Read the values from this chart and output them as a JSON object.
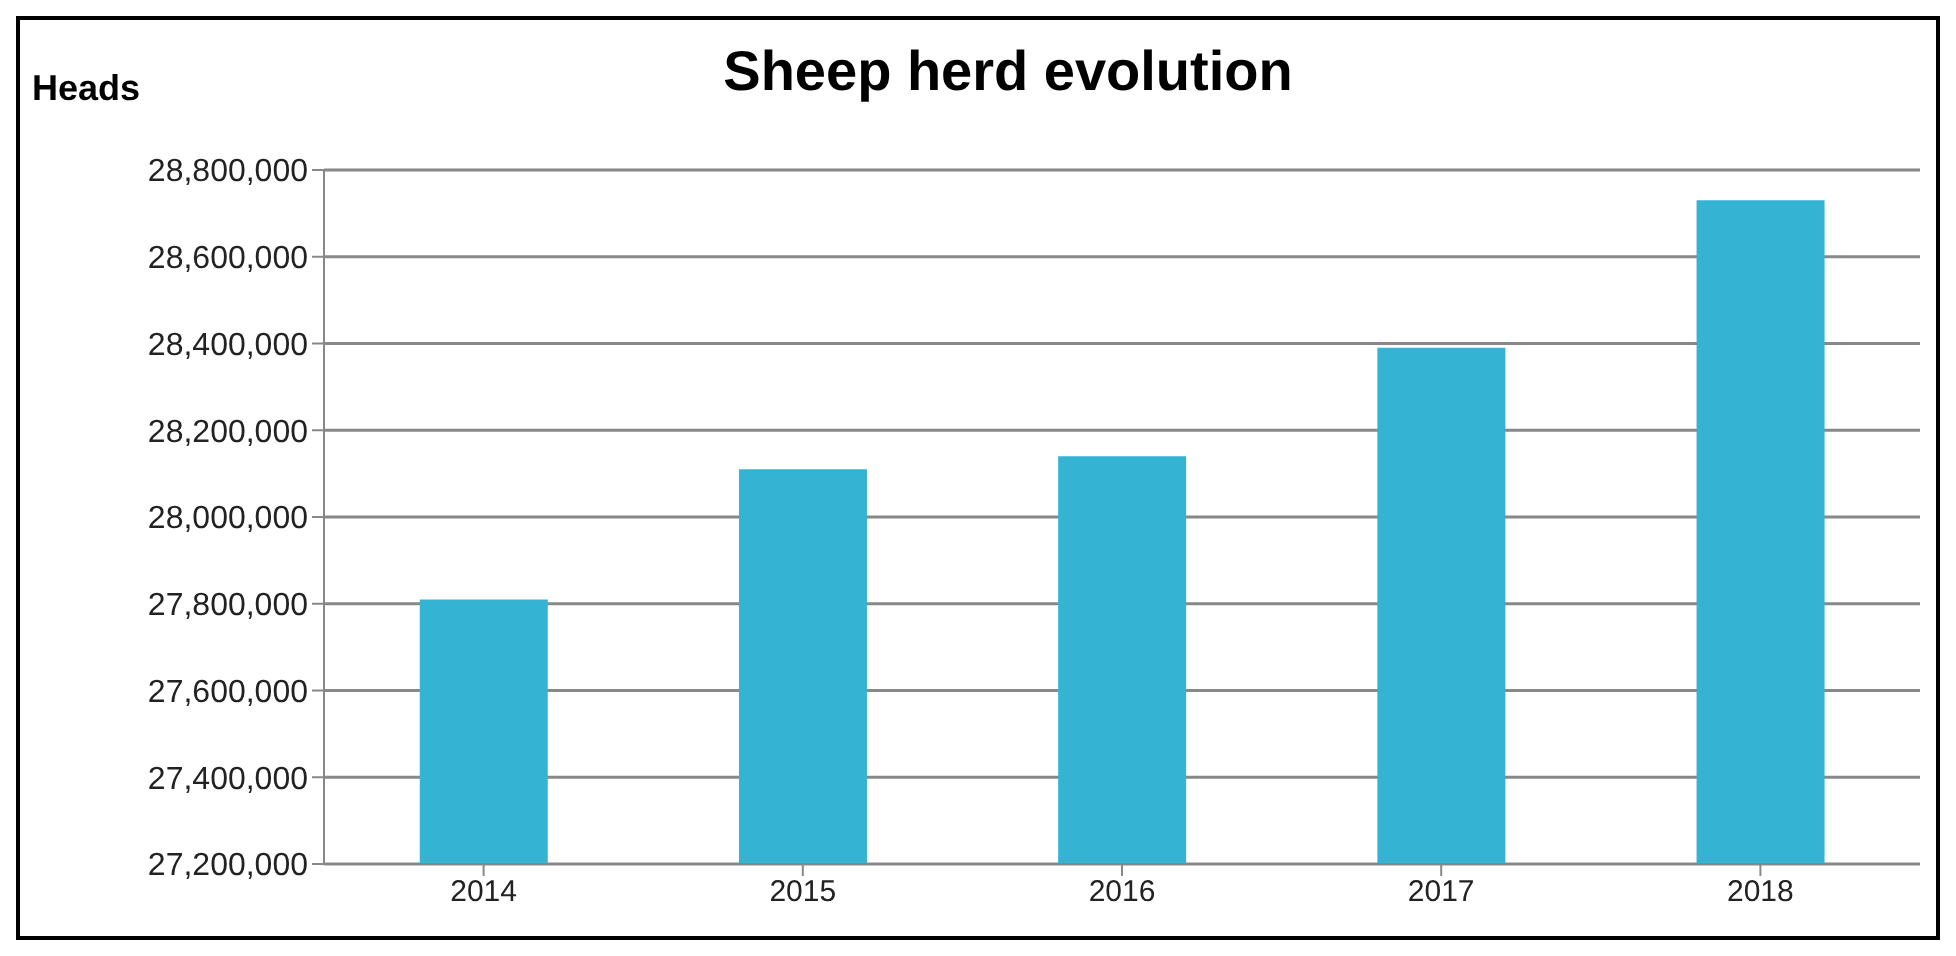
{
  "chart_data": {
    "type": "bar",
    "title": "Sheep herd evolution",
    "ylabel": "Heads",
    "categories": [
      "2014",
      "2015",
      "2016",
      "2017",
      "2018"
    ],
    "values": [
      27810000,
      28110000,
      28140000,
      28390000,
      28730000
    ],
    "color": "#35b3d3",
    "ylim": [
      27200000,
      28800000
    ],
    "yticks": [
      {
        "value": 27200000,
        "label": "27,200,000"
      },
      {
        "value": 27400000,
        "label": "27,400,000"
      },
      {
        "value": 27600000,
        "label": "27,600,000"
      },
      {
        "value": 27800000,
        "label": "27,800,000"
      },
      {
        "value": 28000000,
        "label": "28,000,000"
      },
      {
        "value": 28200000,
        "label": "28,200,000"
      },
      {
        "value": 28400000,
        "label": "28,400,000"
      },
      {
        "value": 28600000,
        "label": "28,600,000"
      },
      {
        "value": 28800000,
        "label": "28,800,000"
      }
    ],
    "grid": "y"
  }
}
